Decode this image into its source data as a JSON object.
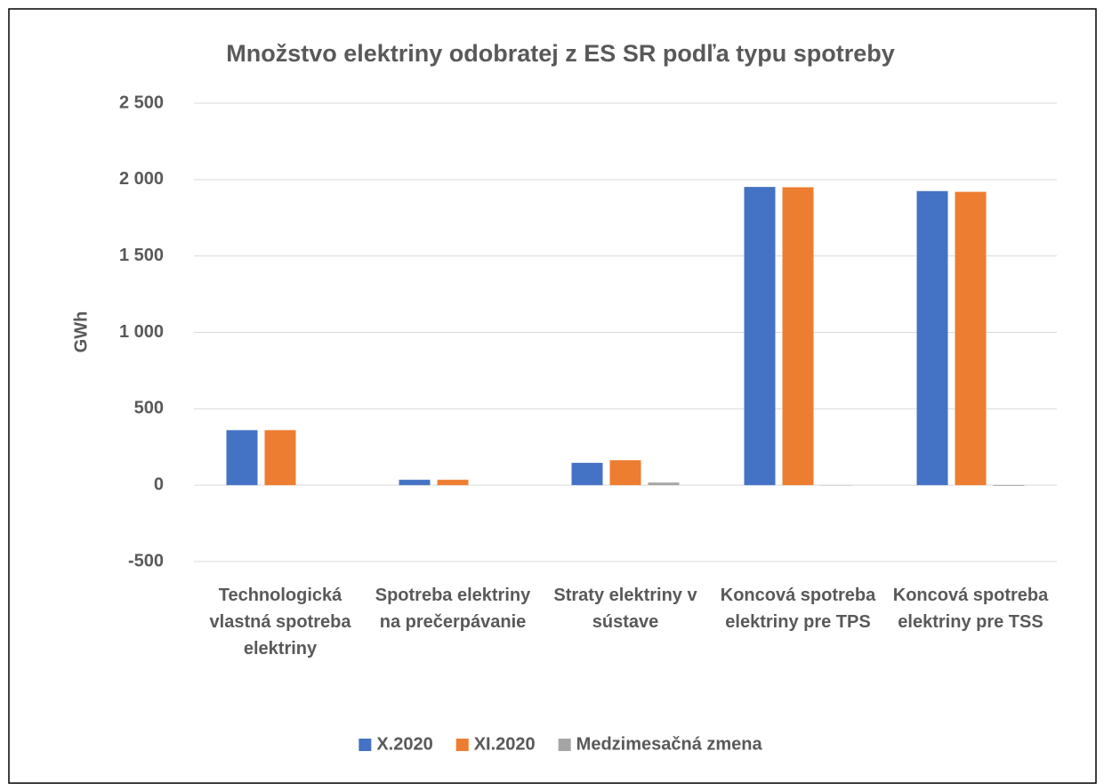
{
  "chart_data": {
    "type": "bar",
    "title": "Množstvo elektriny odobratej z ES SR podľa typu spotreby",
    "y_label": "GWh",
    "categories": [
      "Technologická vlastná spotreba elektriny",
      "Spotreba elektriny na prečerpávanie",
      "Straty elektriny v sústave",
      "Koncová spotreba elektriny pre TPS",
      "Koncová spotreba elektriny pre TSS"
    ],
    "series": [
      {
        "name": "X.2020",
        "color": "#4472c4",
        "values": [
          360,
          35,
          146,
          1952,
          1925
        ]
      },
      {
        "name": "XI.2020",
        "color": "#ed7d31",
        "values": [
          360,
          35,
          163,
          1950,
          1920
        ]
      },
      {
        "name": "Medzimesačná zmena",
        "color": "#a5a5a5",
        "values": [
          0,
          0,
          17,
          -2,
          -5
        ]
      }
    ],
    "ylim": [
      -500,
      2500
    ],
    "yticks": [
      -500,
      0,
      500,
      {
        "value": 1000,
        "label": "1 000"
      },
      {
        "value": 1500,
        "label": "1 500"
      },
      {
        "value": 2000,
        "label": "2 000"
      },
      {
        "value": 2500,
        "label": "2 500"
      }
    ],
    "grid": true,
    "legend": "bottom"
  }
}
